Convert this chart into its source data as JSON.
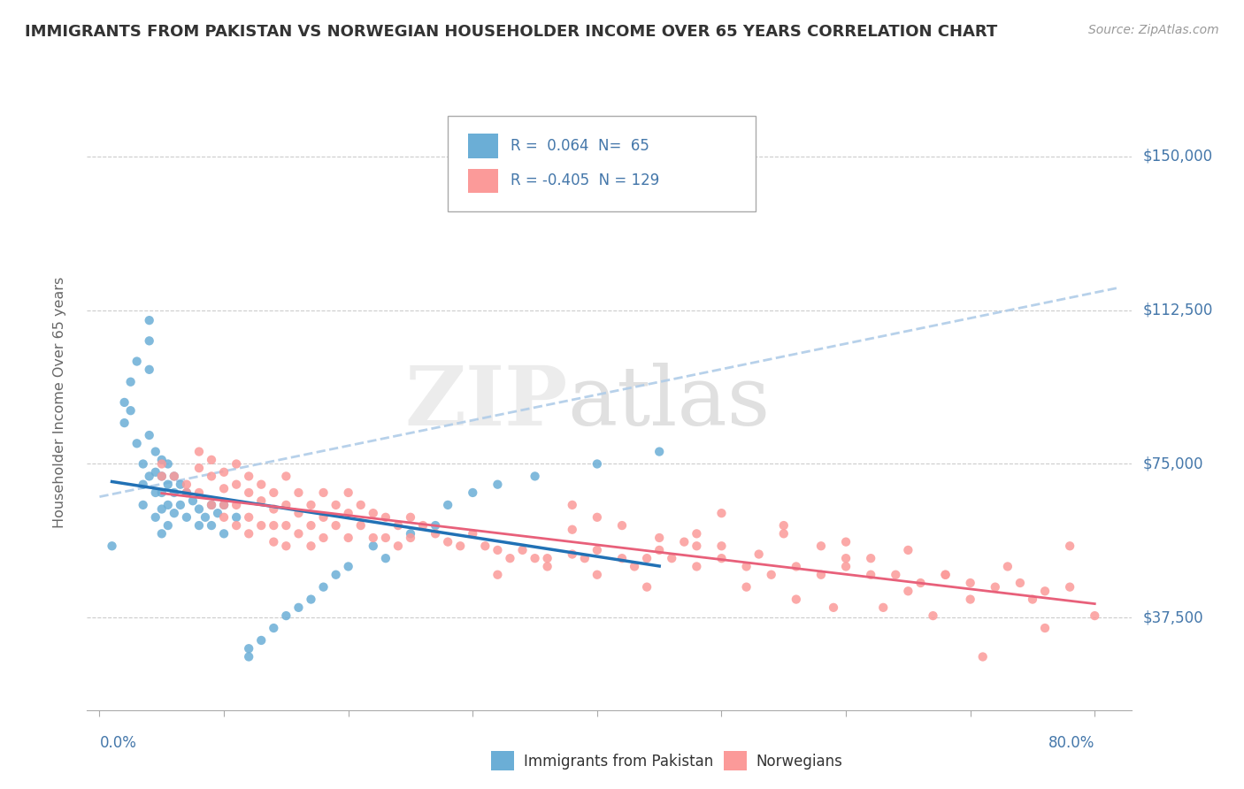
{
  "title": "IMMIGRANTS FROM PAKISTAN VS NORWEGIAN HOUSEHOLDER INCOME OVER 65 YEARS CORRELATION CHART",
  "source": "Source: ZipAtlas.com",
  "ylabel": "Householder Income Over 65 years",
  "ytick_labels": [
    "$37,500",
    "$75,000",
    "$112,500",
    "$150,000"
  ],
  "ytick_values": [
    37500,
    75000,
    112500,
    150000
  ],
  "ylim": [
    15000,
    165000
  ],
  "xlim": [
    -0.01,
    0.83
  ],
  "pakistan_color": "#6baed6",
  "norwegian_color": "#fb9a99",
  "pakistan_line_color": "#2171b5",
  "norwegian_line_color": "#e8607a",
  "trend_line_color": "#b0cce8",
  "background_color": "#ffffff",
  "grid_color": "#cccccc",
  "axis_label_color": "#4477aa",
  "pakistan_scatter_x": [
    0.01,
    0.02,
    0.02,
    0.025,
    0.025,
    0.03,
    0.03,
    0.035,
    0.035,
    0.035,
    0.04,
    0.04,
    0.04,
    0.04,
    0.04,
    0.045,
    0.045,
    0.045,
    0.045,
    0.05,
    0.05,
    0.05,
    0.05,
    0.05,
    0.055,
    0.055,
    0.055,
    0.055,
    0.06,
    0.06,
    0.06,
    0.065,
    0.065,
    0.07,
    0.07,
    0.075,
    0.08,
    0.08,
    0.085,
    0.09,
    0.09,
    0.095,
    0.1,
    0.1,
    0.11,
    0.12,
    0.12,
    0.13,
    0.14,
    0.15,
    0.16,
    0.17,
    0.18,
    0.19,
    0.2,
    0.22,
    0.23,
    0.25,
    0.27,
    0.28,
    0.3,
    0.32,
    0.35,
    0.4,
    0.45
  ],
  "pakistan_scatter_y": [
    55000,
    90000,
    85000,
    95000,
    88000,
    100000,
    80000,
    75000,
    70000,
    65000,
    110000,
    105000,
    98000,
    82000,
    72000,
    78000,
    73000,
    68000,
    62000,
    76000,
    72000,
    68000,
    64000,
    58000,
    75000,
    70000,
    65000,
    60000,
    72000,
    68000,
    63000,
    70000,
    65000,
    68000,
    62000,
    66000,
    64000,
    60000,
    62000,
    65000,
    60000,
    63000,
    65000,
    58000,
    62000,
    30000,
    28000,
    32000,
    35000,
    38000,
    40000,
    42000,
    45000,
    48000,
    50000,
    55000,
    52000,
    58000,
    60000,
    65000,
    68000,
    70000,
    72000,
    75000,
    78000
  ],
  "norwegian_scatter_x": [
    0.05,
    0.06,
    0.07,
    0.07,
    0.08,
    0.08,
    0.08,
    0.09,
    0.09,
    0.09,
    0.1,
    0.1,
    0.1,
    0.1,
    0.11,
    0.11,
    0.11,
    0.11,
    0.12,
    0.12,
    0.12,
    0.12,
    0.13,
    0.13,
    0.13,
    0.14,
    0.14,
    0.14,
    0.14,
    0.15,
    0.15,
    0.15,
    0.15,
    0.16,
    0.16,
    0.16,
    0.17,
    0.17,
    0.17,
    0.18,
    0.18,
    0.18,
    0.19,
    0.19,
    0.2,
    0.2,
    0.2,
    0.21,
    0.21,
    0.22,
    0.22,
    0.23,
    0.23,
    0.24,
    0.24,
    0.25,
    0.25,
    0.26,
    0.27,
    0.28,
    0.29,
    0.3,
    0.31,
    0.32,
    0.33,
    0.34,
    0.35,
    0.36,
    0.38,
    0.39,
    0.4,
    0.42,
    0.43,
    0.45,
    0.46,
    0.48,
    0.5,
    0.52,
    0.54,
    0.56,
    0.58,
    0.6,
    0.62,
    0.64,
    0.66,
    0.68,
    0.7,
    0.72,
    0.74,
    0.76,
    0.78,
    0.05,
    0.48,
    0.32,
    0.55,
    0.6,
    0.4,
    0.45,
    0.38,
    0.52,
    0.65,
    0.7,
    0.75,
    0.5,
    0.55,
    0.6,
    0.65,
    0.38,
    0.42,
    0.47,
    0.53,
    0.58,
    0.62,
    0.68,
    0.73,
    0.78,
    0.44,
    0.48,
    0.5,
    0.36,
    0.4,
    0.44,
    0.56,
    0.59,
    0.63,
    0.67,
    0.71,
    0.76,
    0.8
  ],
  "norwegian_scatter_y": [
    75000,
    72000,
    70000,
    68000,
    78000,
    74000,
    68000,
    76000,
    72000,
    65000,
    73000,
    69000,
    65000,
    62000,
    75000,
    70000,
    65000,
    60000,
    72000,
    68000,
    62000,
    58000,
    70000,
    66000,
    60000,
    68000,
    64000,
    60000,
    56000,
    72000,
    65000,
    60000,
    55000,
    68000,
    63000,
    58000,
    65000,
    60000,
    55000,
    68000,
    62000,
    57000,
    65000,
    60000,
    68000,
    63000,
    57000,
    65000,
    60000,
    63000,
    57000,
    62000,
    57000,
    60000,
    55000,
    62000,
    57000,
    60000,
    58000,
    56000,
    55000,
    58000,
    55000,
    54000,
    52000,
    54000,
    52000,
    52000,
    53000,
    52000,
    54000,
    52000,
    50000,
    54000,
    52000,
    50000,
    52000,
    50000,
    48000,
    50000,
    48000,
    50000,
    48000,
    48000,
    46000,
    48000,
    46000,
    45000,
    46000,
    44000,
    45000,
    72000,
    55000,
    48000,
    58000,
    52000,
    62000,
    57000,
    59000,
    45000,
    44000,
    42000,
    42000,
    63000,
    60000,
    56000,
    54000,
    65000,
    60000,
    56000,
    53000,
    55000,
    52000,
    48000,
    50000,
    55000,
    52000,
    58000,
    55000,
    50000,
    48000,
    45000,
    42000,
    40000,
    40000,
    38000,
    28000,
    35000,
    38000
  ]
}
